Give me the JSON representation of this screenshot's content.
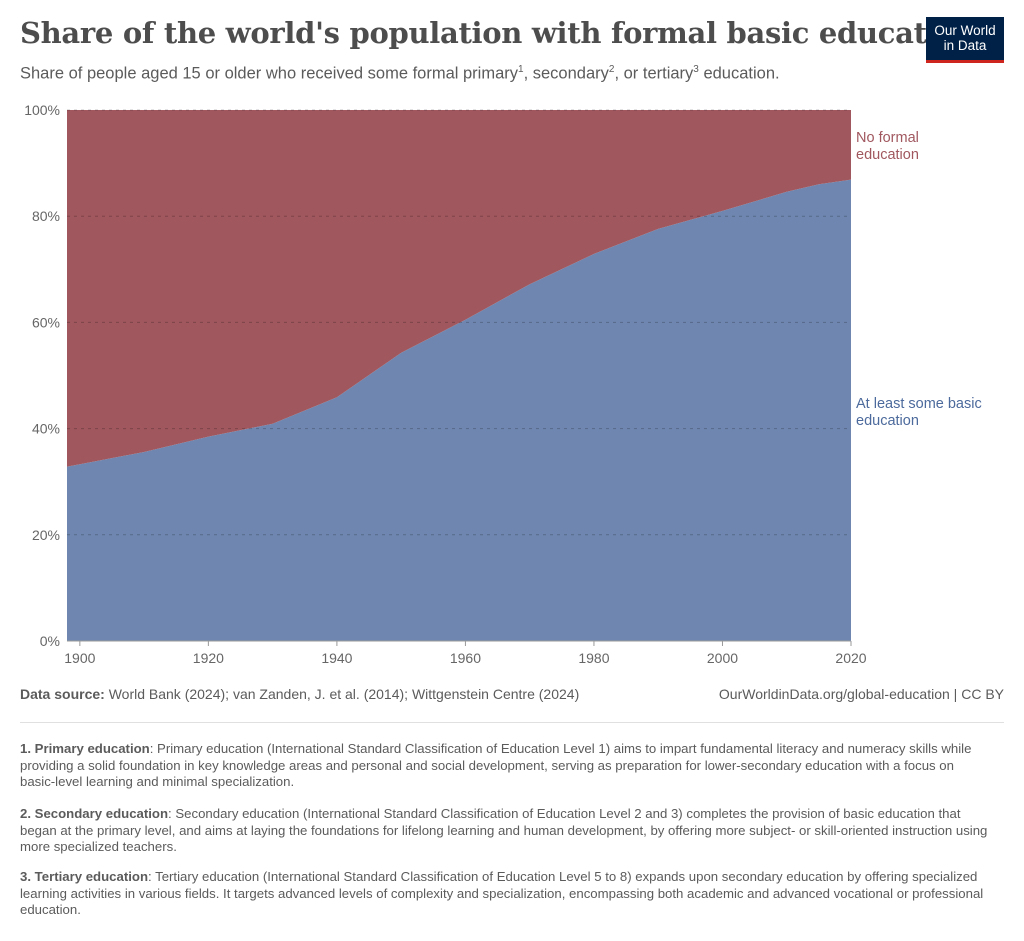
{
  "header": {
    "title": "Share of the world's population with formal basic education",
    "subtitle_parts": {
      "p1": "Share of people aged 15 or older who received some formal primary",
      "s1": "1",
      "p2": ", secondary",
      "s2": "2",
      "p3": ", or tertiary",
      "s3": "3",
      "p4": " education."
    },
    "logo_line1": "Our World",
    "logo_line2": "in Data"
  },
  "chart_data": {
    "type": "area",
    "stacked": true,
    "title": "Share of the world's population with formal basic education",
    "x": [
      1900,
      1910,
      1920,
      1930,
      1940,
      1950,
      1960,
      1970,
      1980,
      1990,
      2000,
      2010,
      2015,
      2020
    ],
    "series": [
      {
        "name": "At least some basic education",
        "color": "#6f87b0",
        "values": [
          33.3,
          35.6,
          38.5,
          40.9,
          45.9,
          54.3,
          60.5,
          67.2,
          72.9,
          77.6,
          81.0,
          84.6,
          86.0,
          86.9
        ]
      },
      {
        "name": "No formal education",
        "color": "#a0575e",
        "values": [
          66.7,
          64.4,
          61.5,
          59.1,
          54.1,
          45.7,
          39.5,
          32.8,
          27.1,
          22.4,
          19.0,
          15.4,
          14.0,
          13.1
        ]
      }
    ],
    "xlim": [
      1898,
      2020
    ],
    "ylim": [
      0,
      100
    ],
    "x_ticks": [
      {
        "value": 1900,
        "label": "1900"
      },
      {
        "value": 1920,
        "label": "1920"
      },
      {
        "value": 1940,
        "label": "1940"
      },
      {
        "value": 1960,
        "label": "1960"
      },
      {
        "value": 1980,
        "label": "1980"
      },
      {
        "value": 2000,
        "label": "2000"
      },
      {
        "value": 2020,
        "label": "2020"
      }
    ],
    "y_ticks": [
      {
        "value": 0,
        "label": "0%"
      },
      {
        "value": 20,
        "label": "20%"
      },
      {
        "value": 40,
        "label": "40%"
      },
      {
        "value": 60,
        "label": "60%"
      },
      {
        "value": 80,
        "label": "80%"
      },
      {
        "value": 100,
        "label": "100%"
      }
    ],
    "series_labels": [
      {
        "lines": [
          "No formal",
          "education"
        ],
        "color": "#a0575e"
      },
      {
        "lines": [
          "At least some basic",
          "education"
        ],
        "color": "#4c6a9c"
      }
    ],
    "grid": "horizontal dotted",
    "legend": "right, inline labels"
  },
  "footer": {
    "source_label": "Data source:",
    "source_text": " World Bank (2024); van Zanden, J. et al. (2014); Wittgenstein Centre (2024)",
    "license": "OurWorldinData.org/global-education | CC BY",
    "notes": [
      {
        "label": "1. Primary education",
        "text": ": Primary education (International Standard Classification of Education Level 1) aims to impart fundamental literacy and numeracy skills while providing a solid foundation in key knowledge areas and personal and social development, serving as preparation for lower-secondary education with a focus on basic-level learning and minimal specialization."
      },
      {
        "label": "2. Secondary education",
        "text": ": Secondary education (International Standard Classification of Education Level 2 and 3) completes the provision of basic education that began at the primary level, and aims at laying the foundations for lifelong learning and human development, by offering more subject- or skill-oriented instruction using more specialized teachers."
      },
      {
        "label": "3. Tertiary education",
        "text": ": Tertiary education (International Standard Classification of Education Level 5 to 8) expands upon secondary education by offering specialized learning activities in various fields. It targets advanced levels of complexity and specialization, encompassing both academic and advanced vocational or professional education."
      }
    ]
  }
}
